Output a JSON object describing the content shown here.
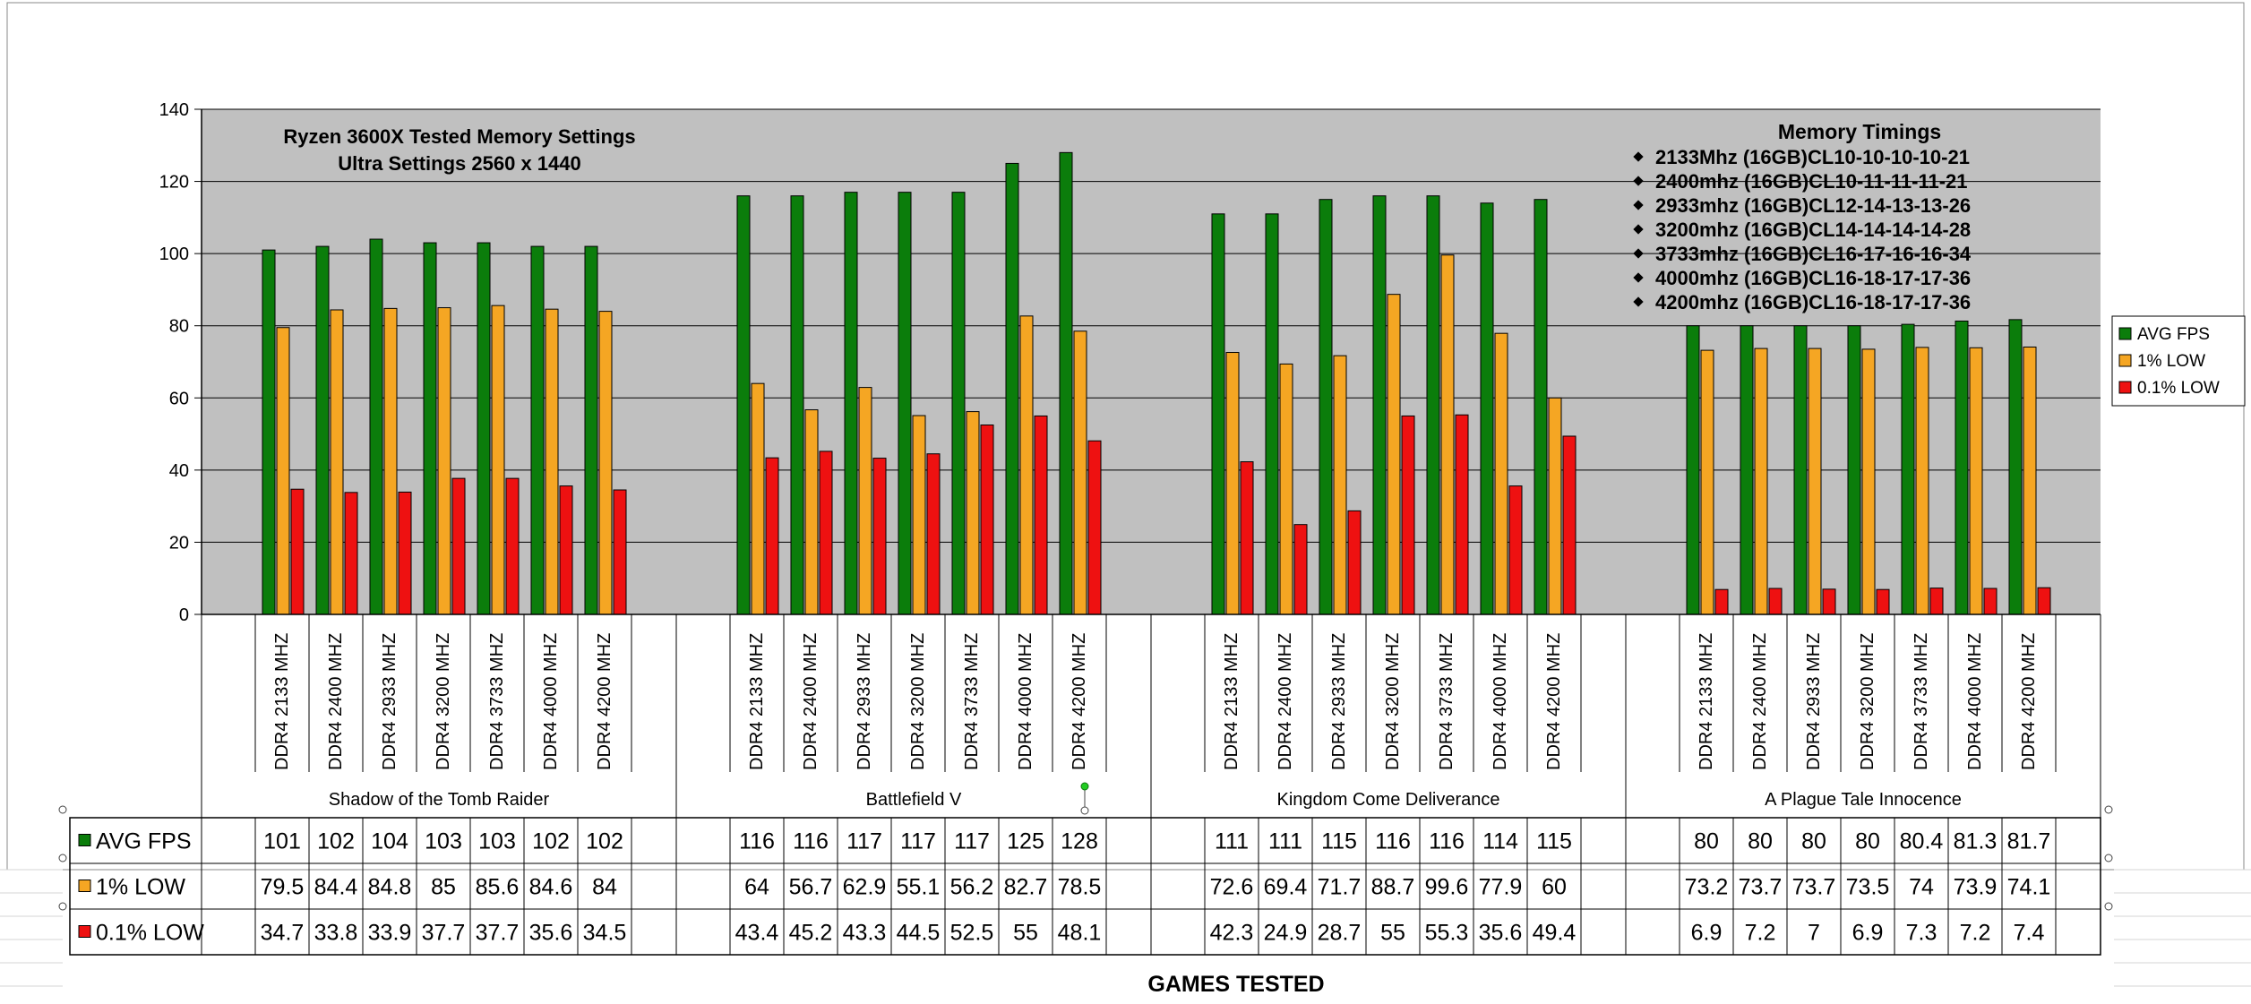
{
  "chart_data": {
    "type": "bar",
    "title": [
      "Ryzen 3600X Tested Memory Settings",
      "Ultra Settings 2560 x 1440"
    ],
    "xlabel": "GAMES TESTED",
    "ylabel": "",
    "ylim": [
      0,
      140
    ],
    "yticks": [
      0,
      20,
      40,
      60,
      80,
      100,
      120,
      140
    ],
    "grid": true,
    "legend_position": "right",
    "groups": [
      "Shadow of the Tomb Raider",
      "Battlefield V",
      "Kingdom Come Deliverance",
      "A Plague Tale Innocence"
    ],
    "categories": [
      "DDR4 2133 MHZ",
      "DDR4 2400 MHZ",
      "DDR4 2933 MHZ",
      "DDR4 3200 MHZ",
      "DDR4 3733 MHZ",
      "DDR4 4000 MHZ",
      "DDR4 4200 MHZ"
    ],
    "series": [
      {
        "name": "AVG FPS",
        "color": "#0b7d0b",
        "values": [
          [
            "101",
            "102",
            "104",
            "103",
            "103",
            "102",
            "102"
          ],
          [
            "116",
            "116",
            "117",
            "117",
            "117",
            "125",
            "128"
          ],
          [
            "111",
            "111",
            "115",
            "116",
            "116",
            "114",
            "115"
          ],
          [
            "80",
            "80",
            "80",
            "80",
            "80.4",
            "81.3",
            "81.7"
          ]
        ]
      },
      {
        "name": "1% LOW",
        "color": "#f5a623",
        "values": [
          [
            "79.5",
            "84.4",
            "84.8",
            "85",
            "85.6",
            "84.6",
            "84"
          ],
          [
            "64",
            "56.7",
            "62.9",
            "55.1",
            "56.2",
            "82.7",
            "78.5"
          ],
          [
            "72.6",
            "69.4",
            "71.7",
            "88.7",
            "99.6",
            "77.9",
            "60"
          ],
          [
            "73.2",
            "73.7",
            "73.7",
            "73.5",
            "74",
            "73.9",
            "74.1"
          ]
        ]
      },
      {
        "name": "0.1% LOW",
        "color": "#ee1111",
        "values": [
          [
            "34.7",
            "33.8",
            "33.9",
            "37.7",
            "37.7",
            "35.6",
            "34.5"
          ],
          [
            "43.4",
            "45.2",
            "43.3",
            "44.5",
            "52.5",
            "55",
            "48.1"
          ],
          [
            "42.3",
            "24.9",
            "28.7",
            "55",
            "55.3",
            "35.6",
            "49.4"
          ],
          [
            "6.9",
            "7.2",
            "7",
            "6.9",
            "7.3",
            "7.2",
            "7.4"
          ]
        ]
      }
    ],
    "annotation": {
      "heading": "Memory Timings",
      "lines": [
        "2133Mhz (16GB)CL10-10-10-10-21",
        "2400mhz (16GB)CL10-11-11-11-21",
        "2933mhz (16GB)CL12-14-13-13-26",
        "3200mhz (16GB)CL14-14-14-14-28",
        "3733mhz (16GB)CL16-17-16-16-34",
        "4000mhz (16GB)CL16-18-17-17-36",
        "4200mhz (16GB)CL16-18-17-17-36"
      ]
    }
  }
}
